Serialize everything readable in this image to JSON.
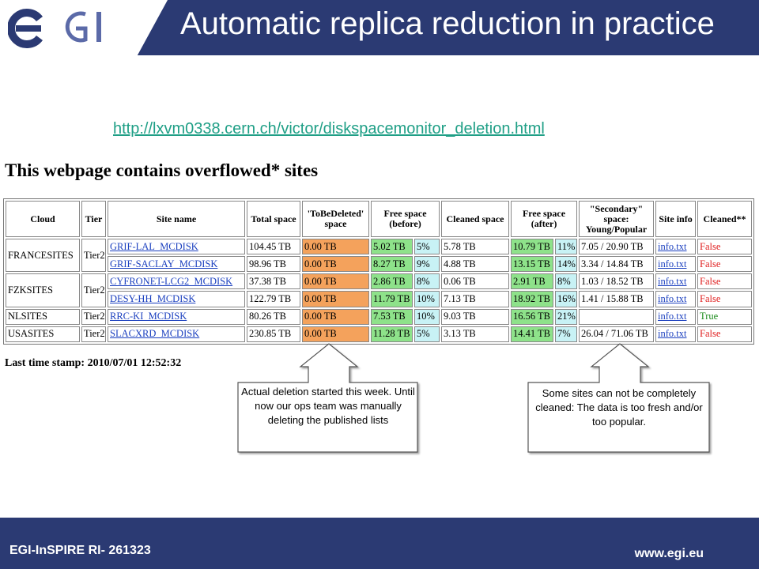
{
  "header": {
    "logo_text": "EGI",
    "title": "Automatic replica reduction in practice"
  },
  "url": "http://lxvm0338.cern.ch/victor/diskspacemonitor_deletion.html",
  "page_heading": "This webpage contains overflowed* sites",
  "table": {
    "headers": [
      "Cloud",
      "Tier",
      "Site name",
      "Total space",
      "'ToBeDeleted' space",
      "Free space (before)",
      "Cleaned space",
      "Free space (after)",
      "\"Secondary\" space: Young/Popular",
      "Site info",
      "Cleaned**"
    ],
    "rows": [
      {
        "cloud": "FRANCESITES",
        "tier": "Tier2",
        "site": "GRIF-LAL_MCDISK",
        "total": "104.45 TB",
        "tobedeleted": "0.00 TB",
        "free_before": "5.02 TB",
        "free_before_pct": "5%",
        "cleaned": "5.78 TB",
        "free_after": "10.79 TB",
        "free_after_pct": "11%",
        "secondary": "7.05 / 20.90 TB",
        "info": "info.txt",
        "cleaned_flag": "False"
      },
      {
        "cloud": "",
        "tier": "",
        "site": "GRIF-SACLAY_MCDISK",
        "total": "98.96 TB",
        "tobedeleted": "0.00 TB",
        "free_before": "8.27 TB",
        "free_before_pct": "9%",
        "cleaned": "4.88 TB",
        "free_after": "13.15 TB",
        "free_after_pct": "14%",
        "secondary": "3.34 / 14.84 TB",
        "info": "info.txt",
        "cleaned_flag": "False"
      },
      {
        "cloud": "FZKSITES",
        "tier": "Tier2",
        "site": "CYFRONET-LCG2_MCDISK",
        "total": "37.38 TB",
        "tobedeleted": "0.00 TB",
        "free_before": "2.86 TB",
        "free_before_pct": "8%",
        "cleaned": "0.06 TB",
        "free_after": "2.91 TB",
        "free_after_pct": "8%",
        "secondary": "1.03 / 18.52 TB",
        "info": "info.txt",
        "cleaned_flag": "False"
      },
      {
        "cloud": "",
        "tier": "",
        "site": "DESY-HH_MCDISK",
        "total": "122.79 TB",
        "tobedeleted": "0.00 TB",
        "free_before": "11.79 TB",
        "free_before_pct": "10%",
        "cleaned": "7.13 TB",
        "free_after": "18.92 TB",
        "free_after_pct": "16%",
        "secondary": "1.41 / 15.88 TB",
        "info": "info.txt",
        "cleaned_flag": "False"
      },
      {
        "cloud": "NLSITES",
        "tier": "Tier2",
        "site": "RRC-KI_MCDISK",
        "total": "80.26 TB",
        "tobedeleted": "0.00 TB",
        "free_before": "7.53 TB",
        "free_before_pct": "10%",
        "cleaned": "9.03 TB",
        "free_after": "16.56 TB",
        "free_after_pct": "21%",
        "secondary": "",
        "info": "info.txt",
        "cleaned_flag": "True"
      },
      {
        "cloud": "USASITES",
        "tier": "Tier2",
        "site": "SLACXRD_MCDISK",
        "total": "230.85 TB",
        "tobedeleted": "0.00 TB",
        "free_before": "11.28 TB",
        "free_before_pct": "5%",
        "cleaned": "3.13 TB",
        "free_after": "14.41 TB",
        "free_after_pct": "7%",
        "secondary": "26.04 / 71.06 TB",
        "info": "info.txt",
        "cleaned_flag": "False"
      }
    ]
  },
  "timestamp": "Last time stamp: 2010/07/01 12:52:32",
  "callouts": {
    "left": "Actual deletion started this week. Until now our ops team was manually deleting the published lists",
    "right": "Some sites can not be completely cleaned: The data is too fresh and/or too popular."
  },
  "colors": {
    "header_bg": "#2b3a73",
    "tobedeleted_cell": "#f4a25c",
    "free_space_cell": "#8ee28a",
    "percent_cell": "#c8f2f5",
    "false_text": "#e02020",
    "true_text": "#1a8a1a",
    "url_color": "#1f9f86"
  },
  "footer": {
    "left": "EGI-InSPIRE RI- 261323",
    "right": "www.egi.eu"
  }
}
